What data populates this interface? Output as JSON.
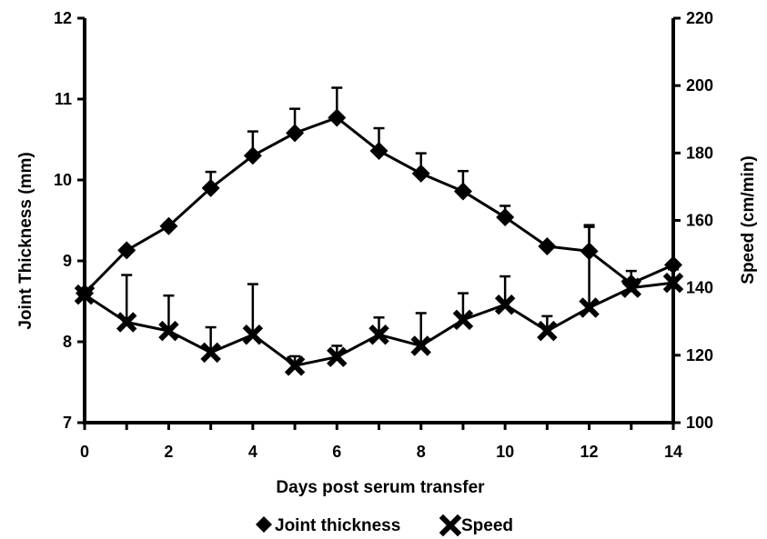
{
  "chart_data": {
    "type": "line",
    "x": [
      0,
      1,
      2,
      3,
      4,
      5,
      6,
      7,
      8,
      9,
      10,
      11,
      12,
      13,
      14
    ],
    "xlabel": "Days post serum transfer",
    "xlim": [
      0,
      14
    ],
    "xticks": [
      "0",
      "2",
      "4",
      "6",
      "8",
      "10",
      "12",
      "14"
    ],
    "y_left": {
      "label": "Joint Thickness  (mm)",
      "lim": [
        7,
        12
      ],
      "ticks": [
        "7",
        "8",
        "9",
        "10",
        "11",
        "12"
      ]
    },
    "y_right": {
      "label": "Speed (cm/min)",
      "lim": [
        100,
        220
      ],
      "ticks": [
        "100",
        "120",
        "140",
        "160",
        "180",
        "200",
        "220"
      ]
    },
    "series": [
      {
        "name": "Joint thickness",
        "axis": "left",
        "marker": "diamond",
        "values": [
          8.6,
          9.13,
          9.43,
          9.9,
          10.3,
          10.58,
          10.77,
          10.36,
          10.08,
          9.86,
          9.54,
          9.18,
          9.12,
          8.72,
          8.95
        ],
        "error_plus": [
          0.0,
          0.0,
          0.04,
          0.2,
          0.3,
          0.3,
          0.37,
          0.28,
          0.25,
          0.25,
          0.14,
          0.0,
          0.3,
          0.0,
          0.0
        ]
      },
      {
        "name": "Speed",
        "axis": "right",
        "marker": "x",
        "values": [
          138,
          129.8,
          127.2,
          120.8,
          126.1,
          116.9,
          119.5,
          126.1,
          122.8,
          130.5,
          135,
          127.2,
          134.1,
          140,
          141.5
        ],
        "error_plus": [
          0,
          14,
          10.5,
          7.5,
          15,
          2.8,
          3.3,
          5.1,
          9.7,
          7.9,
          8.4,
          4.4,
          24.5,
          5,
          4
        ]
      }
    ],
    "grid": false,
    "legend_position": "bottom"
  }
}
